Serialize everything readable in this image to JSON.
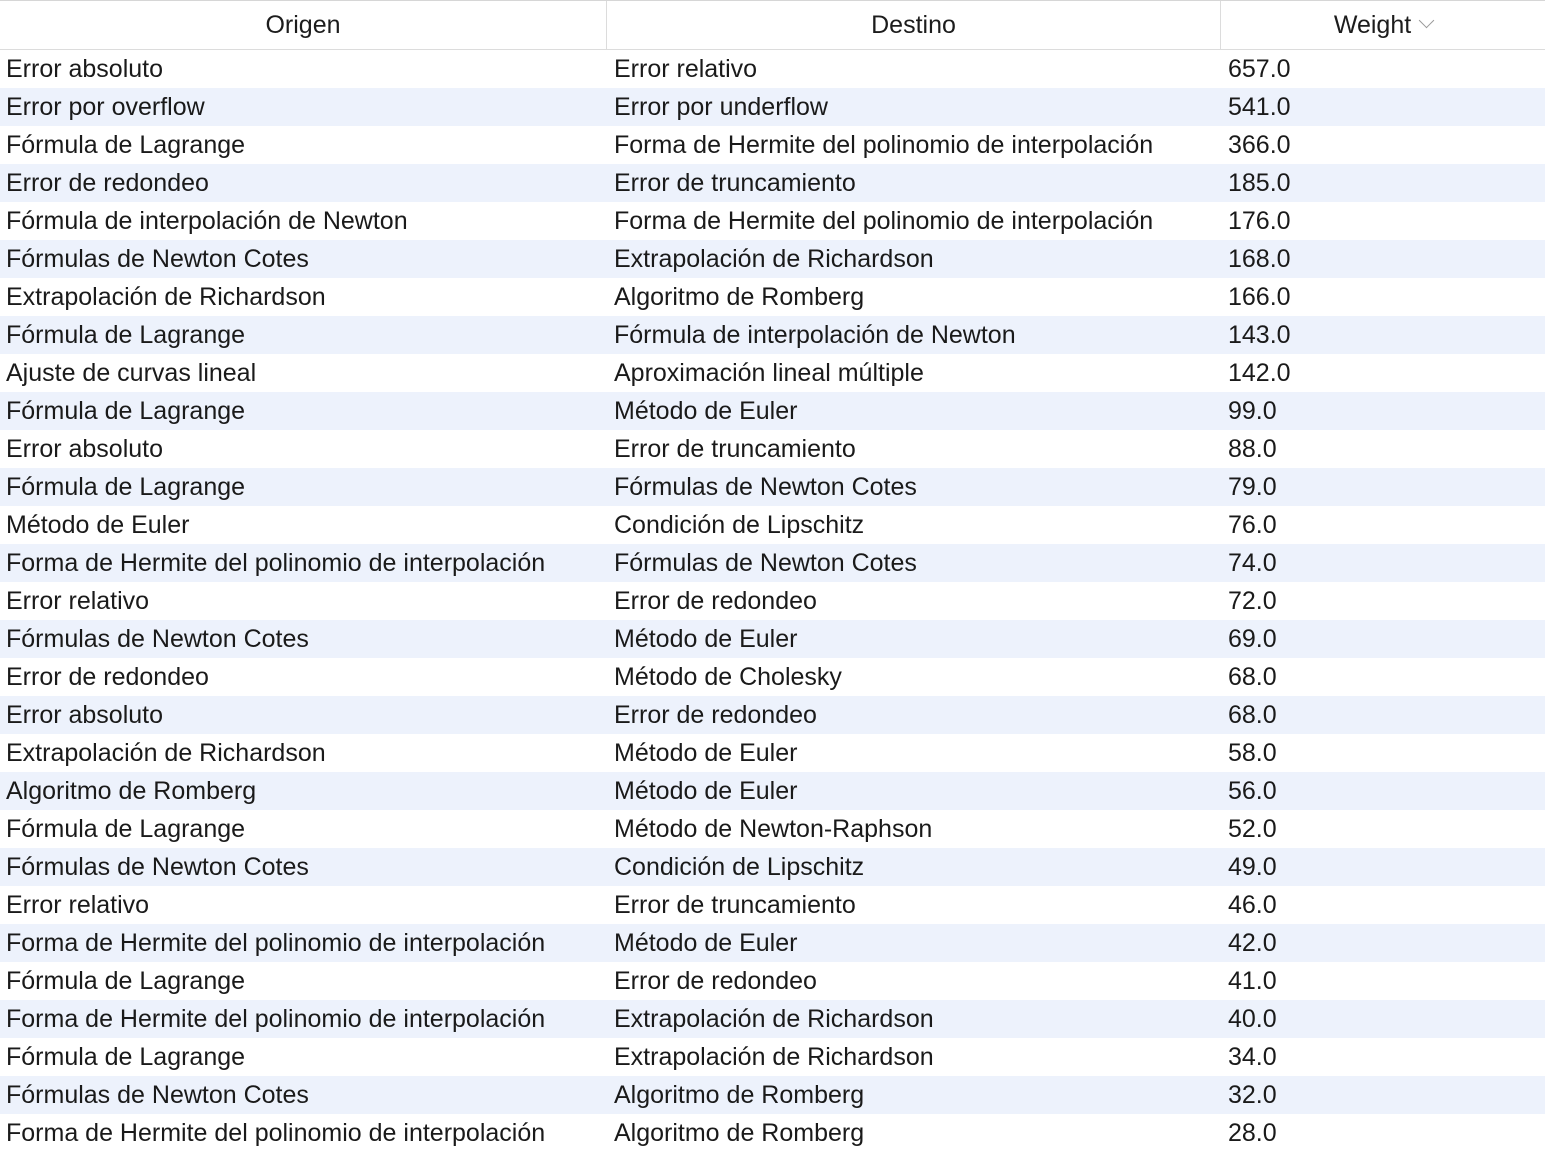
{
  "table": {
    "columns": [
      {
        "label": "Origen"
      },
      {
        "label": "Destino"
      },
      {
        "label": "Weight",
        "sort_icon": "chevron-down-icon"
      }
    ],
    "rows": [
      {
        "origen": "Error absoluto",
        "destino": "Error relativo",
        "weight": "657.0"
      },
      {
        "origen": "Error por overflow",
        "destino": "Error por underflow",
        "weight": "541.0"
      },
      {
        "origen": "Fórmula de Lagrange",
        "destino": "Forma de Hermite del polinomio de interpolación",
        "weight": "366.0"
      },
      {
        "origen": "Error de redondeo",
        "destino": "Error de truncamiento",
        "weight": "185.0"
      },
      {
        "origen": "Fórmula de interpolación de Newton",
        "destino": "Forma de Hermite del polinomio de interpolación",
        "weight": "176.0"
      },
      {
        "origen": "Fórmulas de Newton Cotes",
        "destino": "Extrapolación de Richardson",
        "weight": "168.0"
      },
      {
        "origen": "Extrapolación de Richardson",
        "destino": "Algoritmo de Romberg",
        "weight": "166.0"
      },
      {
        "origen": "Fórmula de Lagrange",
        "destino": "Fórmula de interpolación de Newton",
        "weight": "143.0"
      },
      {
        "origen": "Ajuste de curvas lineal",
        "destino": "Aproximación lineal múltiple",
        "weight": "142.0"
      },
      {
        "origen": "Fórmula de Lagrange",
        "destino": "Método de Euler",
        "weight": "99.0"
      },
      {
        "origen": "Error absoluto",
        "destino": "Error de truncamiento",
        "weight": "88.0"
      },
      {
        "origen": "Fórmula de Lagrange",
        "destino": "Fórmulas de Newton Cotes",
        "weight": "79.0"
      },
      {
        "origen": "Método de Euler",
        "destino": "Condición de Lipschitz",
        "weight": "76.0"
      },
      {
        "origen": "Forma de Hermite del polinomio de interpolación",
        "destino": "Fórmulas de Newton Cotes",
        "weight": "74.0"
      },
      {
        "origen": "Error relativo",
        "destino": "Error de redondeo",
        "weight": "72.0"
      },
      {
        "origen": "Fórmulas de Newton Cotes",
        "destino": "Método de Euler",
        "weight": "69.0"
      },
      {
        "origen": "Error de redondeo",
        "destino": "Método de Cholesky",
        "weight": "68.0"
      },
      {
        "origen": "Error absoluto",
        "destino": "Error de redondeo",
        "weight": "68.0"
      },
      {
        "origen": "Extrapolación de Richardson",
        "destino": "Método de Euler",
        "weight": "58.0"
      },
      {
        "origen": "Algoritmo de Romberg",
        "destino": "Método de Euler",
        "weight": "56.0"
      },
      {
        "origen": "Fórmula de Lagrange",
        "destino": "Método de Newton-Raphson",
        "weight": "52.0"
      },
      {
        "origen": "Fórmulas de Newton Cotes",
        "destino": "Condición de Lipschitz",
        "weight": "49.0"
      },
      {
        "origen": "Error relativo",
        "destino": "Error de truncamiento",
        "weight": "46.0"
      },
      {
        "origen": "Forma de Hermite del polinomio de interpolación",
        "destino": "Método de Euler",
        "weight": "42.0"
      },
      {
        "origen": "Fórmula de Lagrange",
        "destino": "Error de redondeo",
        "weight": "41.0"
      },
      {
        "origen": "Forma de Hermite del polinomio de interpolación",
        "destino": "Extrapolación de Richardson",
        "weight": "40.0"
      },
      {
        "origen": "Fórmula de Lagrange",
        "destino": "Extrapolación de Richardson",
        "weight": "34.0"
      },
      {
        "origen": "Fórmulas de Newton Cotes",
        "destino": "Algoritmo de Romberg",
        "weight": "32.0"
      },
      {
        "origen": "Forma de Hermite del polinomio de interpolación",
        "destino": "Algoritmo de Romberg",
        "weight": "28.0"
      }
    ],
    "colors": {
      "row_alt": "#edf2fc",
      "row": "#ffffff",
      "grid": "#dcdcdc"
    }
  }
}
